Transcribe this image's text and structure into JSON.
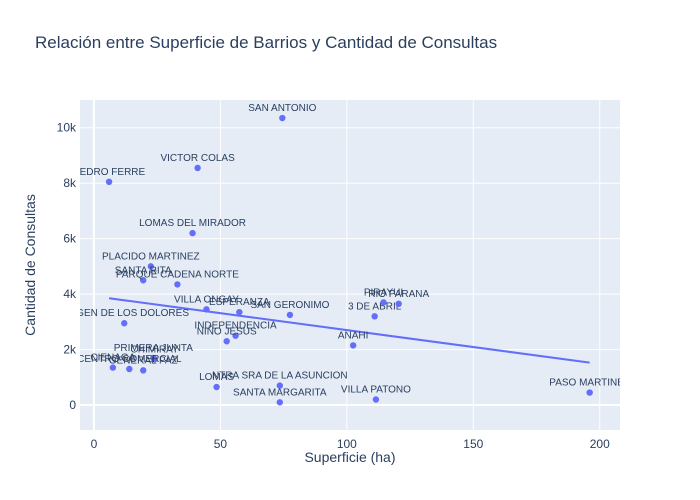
{
  "chart_data": {
    "type": "scatter",
    "title": "Relación entre Superficie de Barrios y Cantidad de Consultas",
    "xlabel": "Superficie (ha)",
    "ylabel": "Cantidad de Consultas",
    "xlim": [
      -5.5,
      208
    ],
    "ylim": [
      -900,
      11000
    ],
    "x_ticks": [
      0,
      50,
      100,
      150,
      200
    ],
    "x_tick_labels": [
      "0",
      "50",
      "100",
      "150",
      "200"
    ],
    "y_ticks": [
      0,
      2000,
      4000,
      6000,
      8000,
      10000
    ],
    "y_tick_labels": [
      "0",
      "2k",
      "4k",
      "6k",
      "8k",
      "10k"
    ],
    "grid": true,
    "marker_color": "#636efa",
    "line_color": "#636efa",
    "points": [
      {
        "x": 74.5,
        "y": 10350,
        "label": "SAN ANTONIO"
      },
      {
        "x": 6,
        "y": 8050,
        "label": "PEDRO FERRE"
      },
      {
        "x": 41,
        "y": 8550,
        "label": "VICTOR COLAS"
      },
      {
        "x": 39,
        "y": 6200,
        "label": "LOMAS DEL MIRADOR"
      },
      {
        "x": 22.5,
        "y": 5000,
        "label": "PLACIDO MARTINEZ"
      },
      {
        "x": 19.5,
        "y": 4500,
        "label": "SANTA RITA"
      },
      {
        "x": 33,
        "y": 4350,
        "label": "PARQUE CADENA NORTE"
      },
      {
        "x": 12,
        "y": 2950,
        "label": "VIRGEN DE LOS DOLORES"
      },
      {
        "x": 44.5,
        "y": 3450,
        "label": "VILLA ONGAY"
      },
      {
        "x": 57.5,
        "y": 3350,
        "label": "ESPERANZA"
      },
      {
        "x": 77.5,
        "y": 3250,
        "label": "SAN GERONIMO"
      },
      {
        "x": 111,
        "y": 3200,
        "label": "3 DE ABRIL"
      },
      {
        "x": 114.5,
        "y": 3700,
        "label": "PIRAYUI"
      },
      {
        "x": 120.5,
        "y": 3650,
        "label": "RIO PARANA"
      },
      {
        "x": 56,
        "y": 2500,
        "label": "INDEPENDENCIA"
      },
      {
        "x": 52.5,
        "y": 2300,
        "label": "NIÑO JESUS"
      },
      {
        "x": 102.5,
        "y": 2150,
        "label": "ANAHI"
      },
      {
        "x": 23.5,
        "y": 1700,
        "label": "PRIMERA JUNTA"
      },
      {
        "x": 24,
        "y": 1650,
        "label": "CHIMIRAY"
      },
      {
        "x": 19.5,
        "y": 1250,
        "label": "GENERAL PAZ"
      },
      {
        "x": 7.5,
        "y": 1350,
        "label": "CIENAGA"
      },
      {
        "x": 14,
        "y": 1300,
        "label": "CENTRO COMERCIAL"
      },
      {
        "x": 48.5,
        "y": 650,
        "label": "LOMAS"
      },
      {
        "x": 73.5,
        "y": 700,
        "label": "NTRA SRA DE LA ASUNCION"
      },
      {
        "x": 73.5,
        "y": 100,
        "label": "SANTA MARGARITA"
      },
      {
        "x": 111.5,
        "y": 200,
        "label": "VILLA PATONO"
      },
      {
        "x": 196,
        "y": 450,
        "label": "PASO MARTINEZ"
      }
    ],
    "trendline": {
      "x": [
        6,
        196
      ],
      "y": [
        3850,
        1530
      ]
    }
  }
}
